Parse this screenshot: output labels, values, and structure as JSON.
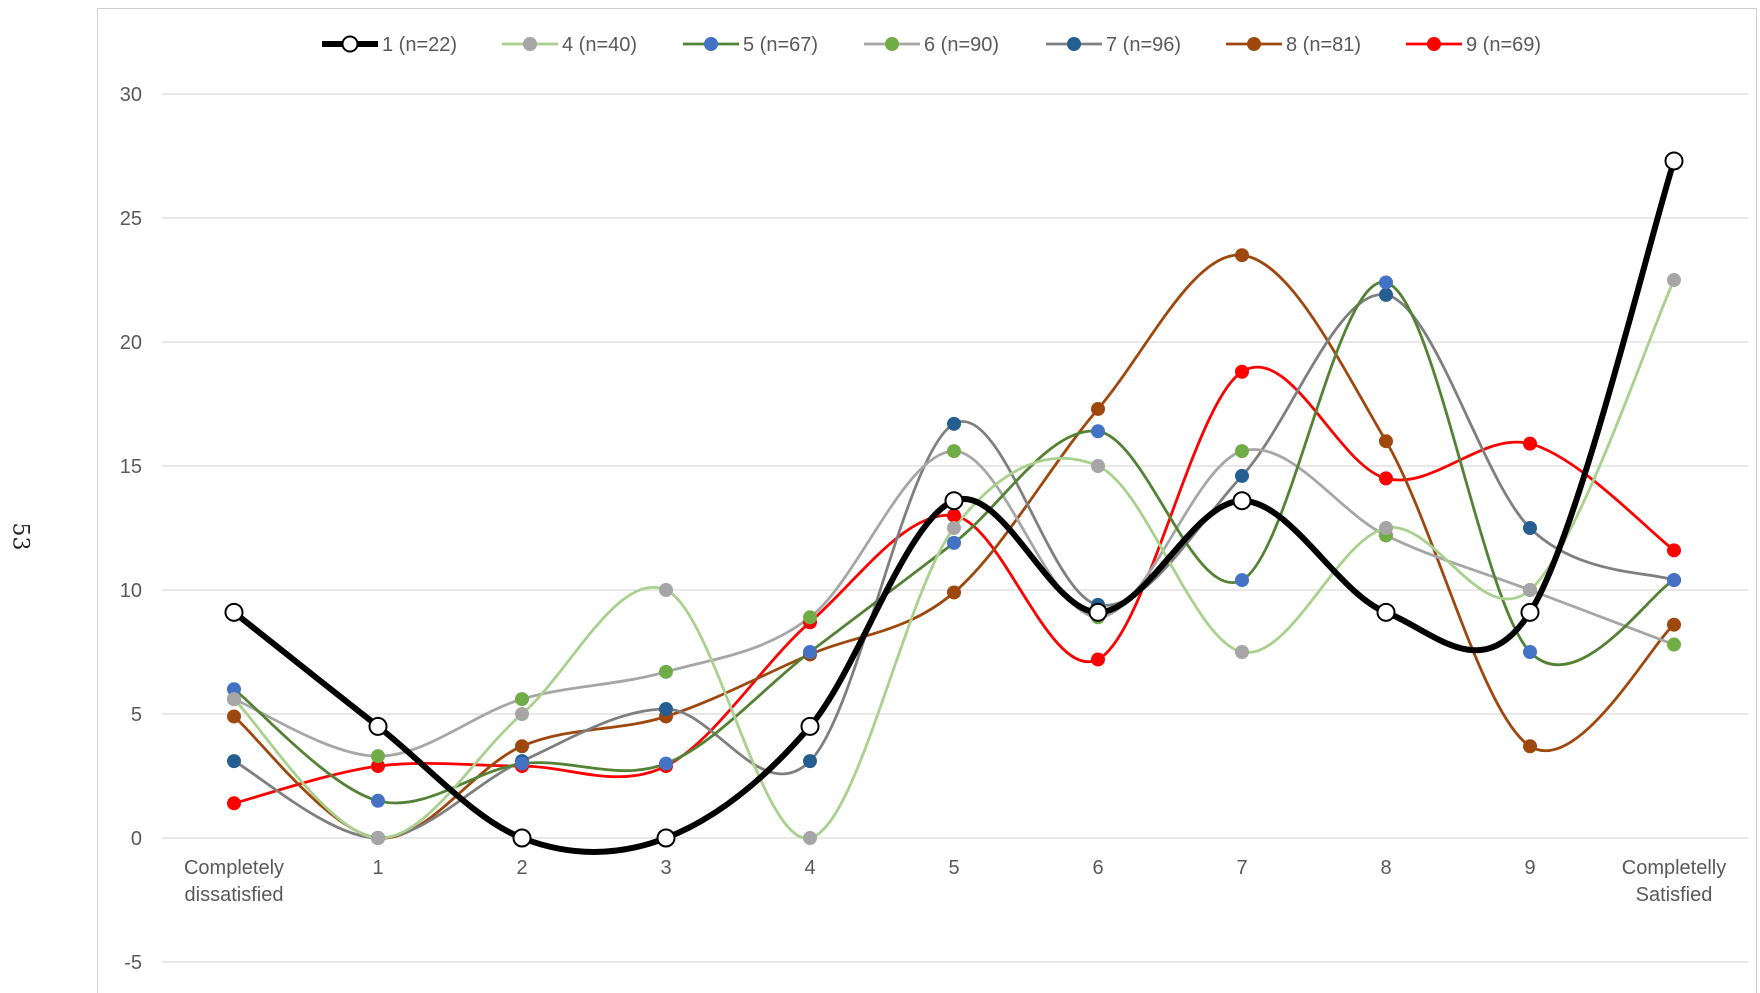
{
  "page_number": "53",
  "chart_data": {
    "type": "line",
    "smooth": true,
    "categories": [
      "Completely dissatisfied",
      "1",
      "2",
      "3",
      "4",
      "5",
      "6",
      "7",
      "8",
      "9",
      "Completelly Satisfied"
    ],
    "category_lines": [
      [
        "Completely",
        "dissatisfied"
      ],
      [
        "1"
      ],
      [
        "2"
      ],
      [
        "3"
      ],
      [
        "4"
      ],
      [
        "5"
      ],
      [
        "6"
      ],
      [
        "7"
      ],
      [
        "8"
      ],
      [
        "9"
      ],
      [
        "Completelly",
        "Satisfied"
      ]
    ],
    "ylim": [
      -5,
      30
    ],
    "yticks": [
      -5,
      0,
      5,
      10,
      15,
      20,
      25,
      30
    ],
    "grid": "horizontal",
    "legend_position": "top",
    "series": [
      {
        "name": "1 (n=22)",
        "color": "#000000",
        "marker": "open-circle",
        "thick": true,
        "values": [
          9.1,
          4.5,
          0,
          0,
          4.5,
          13.6,
          9.1,
          13.6,
          9.1,
          9.1,
          27.3
        ]
      },
      {
        "name": "4 (n=40)",
        "color": "#a9d18e",
        "marker_color": "#a6a6a6",
        "values": [
          5.6,
          0,
          5,
          10,
          0,
          12.5,
          15,
          7.5,
          12.5,
          10,
          22.5
        ]
      },
      {
        "name": "5 (n=67)",
        "color": "#548235",
        "marker_color": "#4472c4",
        "values": [
          6.0,
          1.5,
          3.0,
          3.0,
          7.5,
          11.9,
          16.4,
          10.4,
          22.4,
          7.5,
          10.4
        ]
      },
      {
        "name": "6 (n=90)",
        "color": "#a6a6a6",
        "marker_color": "#70ad47",
        "values": [
          5.6,
          3.3,
          5.6,
          6.7,
          8.9,
          15.6,
          8.9,
          15.6,
          12.2,
          10.0,
          7.8
        ]
      },
      {
        "name": "7 (n=96)",
        "color": "#7f7f7f",
        "marker_color": "#255e91",
        "values": [
          3.1,
          0,
          3.1,
          5.2,
          3.1,
          16.7,
          9.4,
          14.6,
          21.9,
          12.5,
          10.4
        ]
      },
      {
        "name": "8 (n=81)",
        "color": "#9e480e",
        "marker_color": "#9e480e",
        "values": [
          4.9,
          0,
          3.7,
          4.9,
          7.4,
          9.9,
          17.3,
          23.5,
          16.0,
          3.7,
          8.6
        ]
      },
      {
        "name": "9 (n=69)",
        "color": "#ff0000",
        "marker_color": "#ff0000",
        "values": [
          1.4,
          2.9,
          2.9,
          2.9,
          8.7,
          13.0,
          7.2,
          18.8,
          14.5,
          15.9,
          11.6
        ]
      }
    ]
  }
}
